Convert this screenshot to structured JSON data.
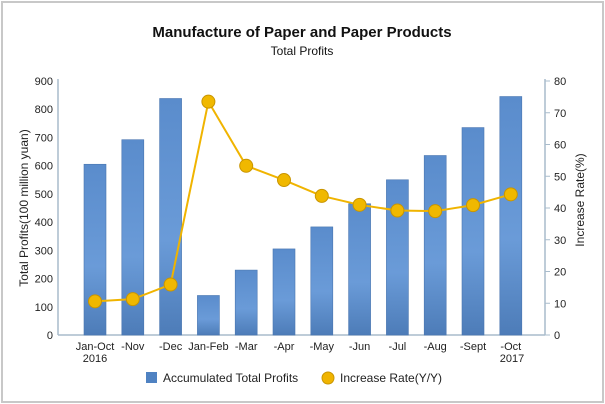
{
  "chart_data": {
    "type": "bar+line",
    "title": "Manufacture of Paper and Paper Products",
    "subtitle": "Total Profits",
    "categories": [
      "Jan-Oct",
      "-Nov",
      "-Dec",
      "Jan-Feb",
      "-Mar",
      "-Apr",
      "-May",
      "-Jun",
      "-Jul",
      "-Aug",
      "-Sept",
      "-Oct"
    ],
    "year_labels": {
      "first": "2016",
      "last": "2017"
    },
    "ylabel": "Total Profits(100 million yuan)",
    "y2label": "Increase Rate(%)",
    "ylim": [
      0,
      900
    ],
    "y2lim": [
      0,
      80
    ],
    "yticks": [
      0,
      100,
      200,
      300,
      400,
      500,
      600,
      700,
      800,
      900
    ],
    "y2ticks": [
      0,
      10,
      20,
      30,
      40,
      50,
      60,
      70,
      80
    ],
    "series": [
      {
        "name": "Accumulated Total Profits",
        "type": "bar",
        "axis": "left",
        "color": "#5b8fcf",
        "values": [
          605,
          692,
          838,
          140,
          230,
          305,
          383,
          465,
          550,
          636,
          735,
          845
        ]
      },
      {
        "name": "Increase Rate(Y/Y)",
        "type": "line",
        "axis": "right",
        "color": "#f0b400",
        "values": [
          10.6,
          11.3,
          15.9,
          73.5,
          53.3,
          48.8,
          43.8,
          41.0,
          39.2,
          39.0,
          40.9,
          44.3
        ]
      }
    ],
    "legend_position": "bottom",
    "grid": false
  }
}
